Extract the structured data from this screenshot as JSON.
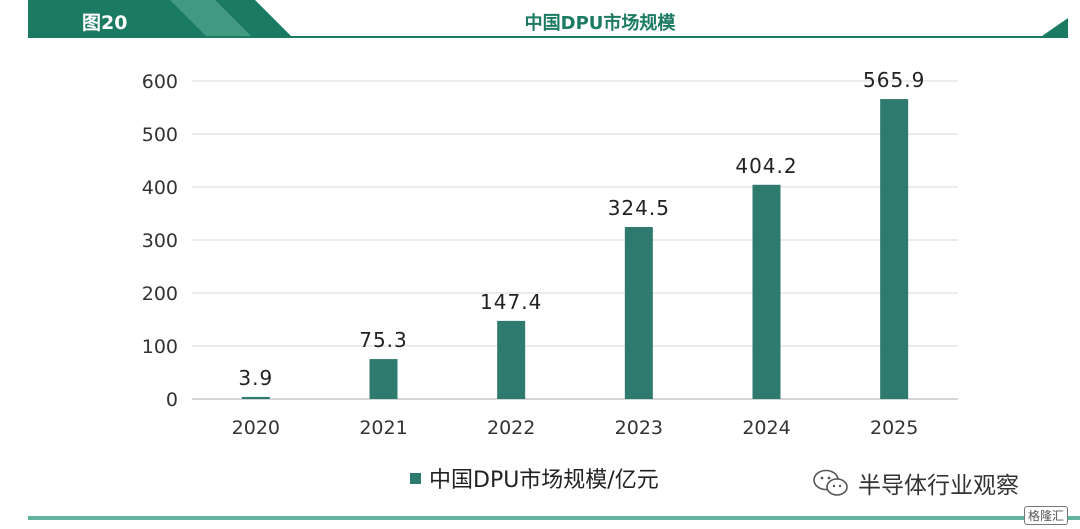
{
  "header": {
    "figure_label": "图20",
    "title": "中国DPU市场规模",
    "accent_color": "#1b7a62",
    "light_color": "#63b49f"
  },
  "chart_data": {
    "type": "bar",
    "categories": [
      "2020",
      "2021",
      "2022",
      "2023",
      "2024",
      "2025"
    ],
    "values": [
      3.9,
      75.3,
      147.4,
      324.5,
      404.2,
      565.9
    ],
    "data_labels": [
      "3.9",
      "75.3",
      "147.4",
      "324.5",
      "404.2",
      "565.9"
    ],
    "series": [
      {
        "name": "中国DPU市场规模/亿元",
        "values": [
          3.9,
          75.3,
          147.4,
          324.5,
          404.2,
          565.9
        ]
      }
    ],
    "title": "中国DPU市场规模",
    "xlabel": "",
    "ylabel": "",
    "ylim": [
      0,
      600
    ],
    "yticks": [
      0,
      100,
      200,
      300,
      400,
      500,
      600
    ],
    "grid": true,
    "legend_position": "bottom",
    "bar_color": "#2e7a6e"
  },
  "legend": {
    "label": "中国DPU市场规模/亿元"
  },
  "watermark": {
    "text": "半导体行业观察",
    "icon": "wechat-icon"
  },
  "corner_logo": {
    "text": "格隆汇"
  }
}
